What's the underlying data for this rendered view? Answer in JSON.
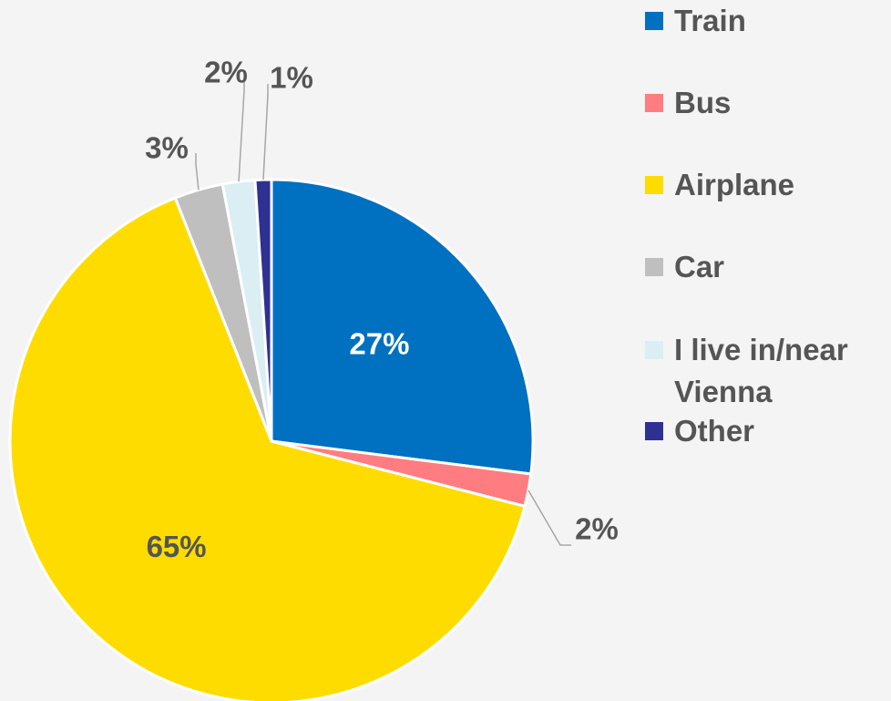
{
  "chart_data": {
    "type": "pie",
    "categories": [
      "Train",
      "Bus",
      "Airplane",
      "Car",
      "I live in/near Vienna",
      "Other"
    ],
    "values": [
      27,
      2,
      65,
      3,
      2,
      1
    ],
    "value_labels": [
      "27%",
      "2%",
      "65%",
      "3%",
      "2%",
      "1%"
    ],
    "colors": [
      "#0070c0",
      "#ff7c80",
      "#ffdc00",
      "#bfbfbf",
      "#daeef3",
      "#2e3192"
    ],
    "legend": "right"
  }
}
